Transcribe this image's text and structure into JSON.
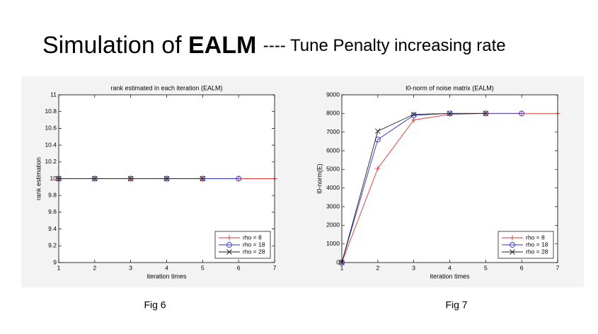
{
  "slide": {
    "title": {
      "prefix": "Simulation of",
      "emphasis": "EALM",
      "suffix": "---- Tune Penalty increasing rate"
    },
    "captions": [
      "Fig 6",
      "Fig 7"
    ]
  },
  "chart_data": [
    {
      "type": "line",
      "title": "rank estimated in each iteration (EALM)",
      "xlabel": "iteration times",
      "ylabel": "rank estimation",
      "xlim": [
        1,
        7
      ],
      "xticks": [
        1,
        2,
        3,
        4,
        5,
        6,
        7
      ],
      "ylim": [
        9,
        11
      ],
      "yticks": [
        9,
        9.2,
        9.4,
        9.6,
        9.8,
        10,
        10.2,
        10.4,
        10.6,
        10.8,
        11
      ],
      "grid": false,
      "legend": "lower right",
      "series": [
        {
          "name": "rho = 8",
          "color": "#e03030",
          "marker": "plus",
          "x": [
            1,
            2,
            3,
            4,
            5,
            6,
            7
          ],
          "values": [
            10,
            10,
            10,
            10,
            10,
            10,
            10
          ]
        },
        {
          "name": "rho = 18",
          "color": "#3030d0",
          "marker": "circle",
          "x": [
            1,
            2,
            3,
            4,
            5,
            6
          ],
          "values": [
            10,
            10,
            10,
            10,
            10,
            10
          ]
        },
        {
          "name": "rho = 28",
          "color": "#202020",
          "marker": "cross",
          "x": [
            1,
            2,
            3,
            4,
            5
          ],
          "values": [
            10,
            10,
            10,
            10,
            10
          ]
        }
      ]
    },
    {
      "type": "line",
      "title": "l0-norm of noise matrix (EALM)",
      "xlabel": "iteration times",
      "ylabel": "l0-norm(E)",
      "xlim": [
        1,
        7
      ],
      "xticks": [
        1,
        2,
        3,
        4,
        5,
        6,
        7
      ],
      "ylim": [
        0,
        9000
      ],
      "yticks": [
        0,
        1000,
        2000,
        3000,
        4000,
        5000,
        6000,
        7000,
        8000,
        9000
      ],
      "grid": false,
      "legend": "lower right",
      "series": [
        {
          "name": "rho = 8",
          "color": "#e03030",
          "marker": "plus",
          "x": [
            1,
            2,
            3,
            4,
            5,
            6,
            7
          ],
          "values": [
            0,
            5050,
            7650,
            7950,
            8000,
            8000,
            8000
          ]
        },
        {
          "name": "rho = 18",
          "color": "#3030d0",
          "marker": "circle",
          "x": [
            1,
            2,
            3,
            4,
            5,
            6
          ],
          "values": [
            0,
            6600,
            7900,
            8000,
            8000,
            8000
          ]
        },
        {
          "name": "rho = 28",
          "color": "#202020",
          "marker": "cross",
          "x": [
            1,
            2,
            3,
            4,
            5
          ],
          "values": [
            0,
            7050,
            7950,
            8000,
            8000
          ]
        }
      ]
    }
  ]
}
